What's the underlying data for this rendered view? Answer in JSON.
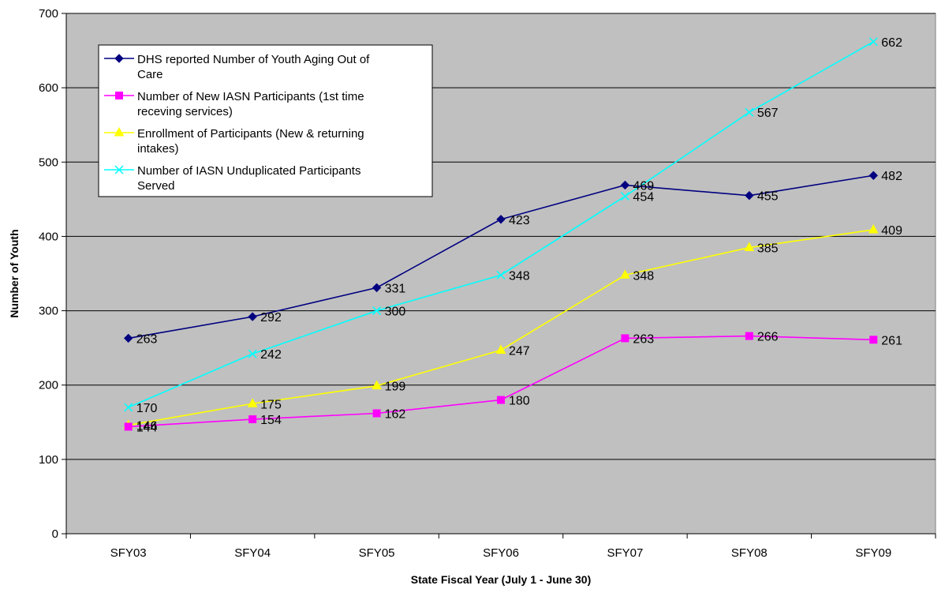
{
  "chart_data": {
    "type": "line",
    "title": "",
    "xlabel": "State Fiscal Year (July 1 - June 30)",
    "ylabel": "Number of Youth",
    "categories": [
      "SFY03",
      "SFY04",
      "SFY05",
      "SFY06",
      "SFY07",
      "SFY08",
      "SFY09"
    ],
    "ylim": [
      0,
      700
    ],
    "yticks": [
      "0",
      "100",
      "200",
      "300",
      "400",
      "500",
      "600",
      "700"
    ],
    "grid": true,
    "legend_position": "top-left",
    "plot_background": "#c0c0c0",
    "series": [
      {
        "name_lines": [
          "DHS reported Number of Youth Aging Out of",
          "Care"
        ],
        "values": [
          263,
          292,
          331,
          423,
          469,
          455,
          482
        ],
        "labels": [
          "263",
          "292",
          "331",
          "423",
          "469",
          "455",
          "482"
        ],
        "color": "#000080",
        "marker": "diamond"
      },
      {
        "name_lines": [
          "Number of New IASN Participants (1st time",
          "receving services)"
        ],
        "values": [
          144,
          154,
          162,
          180,
          263,
          266,
          261
        ],
        "labels": [
          "144",
          "154",
          "162",
          "180",
          "263",
          "266",
          "261"
        ],
        "color": "#ff00ff",
        "marker": "square"
      },
      {
        "name_lines": [
          "Enrollment of Participants (New & returning",
          "intakes)"
        ],
        "values": [
          146,
          175,
          199,
          247,
          348,
          385,
          409
        ],
        "labels": [
          "146",
          "175",
          "199",
          "247",
          "348",
          "385",
          "409"
        ],
        "color": "#ffff00",
        "marker": "triangle"
      },
      {
        "name_lines": [
          "Number of IASN Unduplicated Participants",
          "Served"
        ],
        "values": [
          170,
          242,
          300,
          348,
          454,
          567,
          662
        ],
        "labels": [
          "170",
          "242",
          "300",
          "348",
          "454",
          "567",
          "662"
        ],
        "color": "#00ffff",
        "marker": "x"
      }
    ]
  }
}
